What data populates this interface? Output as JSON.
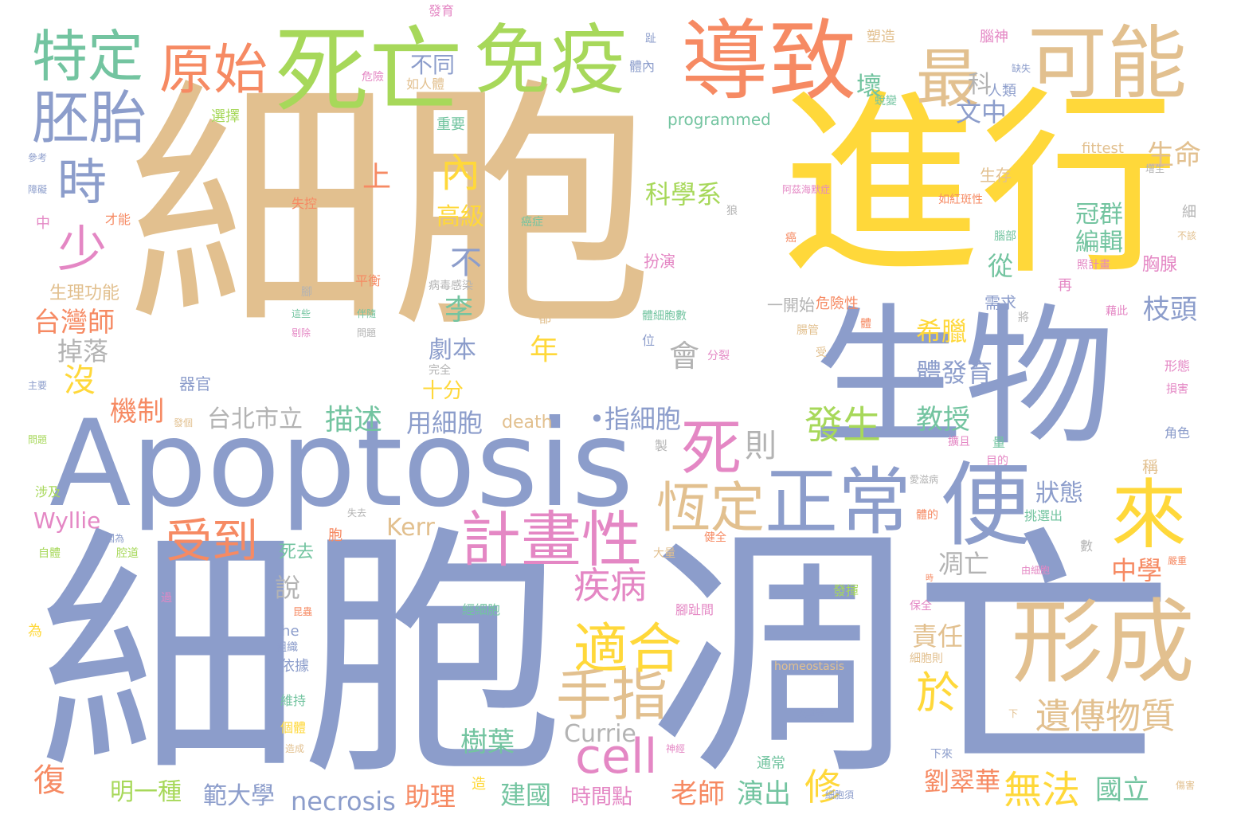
{
  "colors": {
    "tan": "#e2c08f",
    "blue": "#8c9dcb",
    "green": "#a7d85a",
    "orange": "#f68a63",
    "yellow": "#ffd83a",
    "pink": "#e487c4",
    "teal": "#73c4a0",
    "gray": "#b3b3b3"
  },
  "words": [
    {
      "text": "細胞"
    },
    {
      "text": "細胞"
    },
    {
      "text": "凋亡"
    },
    {
      "text": "進行"
    },
    {
      "text": "生物"
    },
    {
      "text": "Apoptosis"
    },
    {
      "text": "導致"
    },
    {
      "text": "死亡"
    },
    {
      "text": "免疫"
    },
    {
      "text": "可能"
    },
    {
      "text": "形成"
    },
    {
      "text": "特定"
    },
    {
      "text": "原始"
    },
    {
      "text": "胚胎"
    },
    {
      "text": "最"
    },
    {
      "text": "正常"
    },
    {
      "text": "便"
    },
    {
      "text": "來"
    },
    {
      "text": "計畫性"
    },
    {
      "text": "死"
    },
    {
      "text": "恆定"
    },
    {
      "text": "手指"
    },
    {
      "text": "適合"
    },
    {
      "text": "cell"
    },
    {
      "text": "時"
    },
    {
      "text": "少"
    },
    {
      "text": "受到"
    },
    {
      "text": "內"
    },
    {
      "text": "疾病"
    },
    {
      "text": "於"
    },
    {
      "text": "遺傳物質"
    },
    {
      "text": "台灣師"
    },
    {
      "text": "掉落"
    },
    {
      "text": "沒"
    },
    {
      "text": "機制"
    },
    {
      "text": "台北市立"
    },
    {
      "text": "描述"
    },
    {
      "text": "用細胞"
    },
    {
      "text": "•指細胞"
    },
    {
      "text": "科學系"
    },
    {
      "text": "冠群"
    },
    {
      "text": "編輯"
    },
    {
      "text": "從"
    },
    {
      "text": "狀態"
    },
    {
      "text": "希臘"
    },
    {
      "text": "體發育"
    },
    {
      "text": "枝頭"
    },
    {
      "text": "教授"
    },
    {
      "text": "發生"
    },
    {
      "text": "修"
    },
    {
      "text": "無法"
    },
    {
      "text": "劉翠華"
    },
    {
      "text": "國立"
    },
    {
      "text": "老師"
    },
    {
      "text": "演出"
    },
    {
      "text": "建國"
    },
    {
      "text": "時間點"
    },
    {
      "text": "助理"
    },
    {
      "text": "necrosis"
    },
    {
      "text": "範大學"
    },
    {
      "text": "明一種"
    },
    {
      "text": "復"
    },
    {
      "text": "Wyllie"
    },
    {
      "text": "Kerr"
    },
    {
      "text": "Currie"
    },
    {
      "text": "樹葉"
    },
    {
      "text": "會"
    },
    {
      "text": "則"
    },
    {
      "text": "高級"
    },
    {
      "text": "不"
    },
    {
      "text": "李"
    },
    {
      "text": "劇本"
    },
    {
      "text": "年"
    },
    {
      "text": "上"
    },
    {
      "text": "不同"
    },
    {
      "text": "壞"
    },
    {
      "text": "科"
    },
    {
      "text": "文中"
    },
    {
      "text": "生命"
    },
    {
      "text": "中學"
    },
    {
      "text": "凋亡"
    },
    {
      "text": "說"
    },
    {
      "text": "責任"
    },
    {
      "text": "十分"
    },
    {
      "text": "death"
    },
    {
      "text": "programmed"
    },
    {
      "text": "fittest"
    },
    {
      "text": "homeostasis"
    },
    {
      "text": "the"
    },
    {
      "text": "生存"
    },
    {
      "text": "一開始"
    },
    {
      "text": "危險性"
    },
    {
      "text": "生理功能"
    },
    {
      "text": "器官"
    },
    {
      "text": "扮演"
    },
    {
      "text": "死去"
    },
    {
      "text": "重要"
    },
    {
      "text": "選擇"
    },
    {
      "text": "塑造"
    },
    {
      "text": "腦神"
    },
    {
      "text": "人類"
    },
    {
      "text": "如人體"
    },
    {
      "text": "危險"
    },
    {
      "text": "體內"
    },
    {
      "text": "發育"
    },
    {
      "text": "趾"
    },
    {
      "text": "缺失"
    },
    {
      "text": "蛻變"
    },
    {
      "text": "增生"
    },
    {
      "text": "如紅斑性"
    },
    {
      "text": "阿茲海默症"
    },
    {
      "text": "參考"
    },
    {
      "text": "障礙"
    },
    {
      "text": "才能"
    },
    {
      "text": "中"
    },
    {
      "text": "失控"
    },
    {
      "text": "癌症"
    },
    {
      "text": "腦部"
    },
    {
      "text": "狼"
    },
    {
      "text": "癌"
    },
    {
      "text": "細"
    },
    {
      "text": "不該"
    },
    {
      "text": "照計畫"
    },
    {
      "text": "胸腺"
    },
    {
      "text": "再"
    },
    {
      "text": "需求"
    },
    {
      "text": "藉此"
    },
    {
      "text": "將"
    },
    {
      "text": "平衡"
    },
    {
      "text": "病毒感染"
    },
    {
      "text": "腳"
    },
    {
      "text": "這些"
    },
    {
      "text": "剔除"
    },
    {
      "text": "伴隨"
    },
    {
      "text": "問題"
    },
    {
      "text": "都"
    },
    {
      "text": "體細胞數"
    },
    {
      "text": "位"
    },
    {
      "text": "分裂"
    },
    {
      "text": "腸管"
    },
    {
      "text": "受"
    },
    {
      "text": "體"
    },
    {
      "text": "主要"
    },
    {
      "text": "完全"
    },
    {
      "text": "形態"
    },
    {
      "text": "損害"
    },
    {
      "text": "角色"
    },
    {
      "text": "發個"
    },
    {
      "text": "問題"
    },
    {
      "text": "製"
    },
    {
      "text": "擴且"
    },
    {
      "text": "量"
    },
    {
      "text": "目的"
    },
    {
      "text": "稱"
    },
    {
      "text": "愛滋病"
    },
    {
      "text": "涉及"
    },
    {
      "text": "失去"
    },
    {
      "text": "體的"
    },
    {
      "text": "挑選出"
    },
    {
      "text": "胞"
    },
    {
      "text": "因為"
    },
    {
      "text": "自體"
    },
    {
      "text": "腔道"
    },
    {
      "text": "健全"
    },
    {
      "text": "大量"
    },
    {
      "text": "數"
    },
    {
      "text": "由細胞"
    },
    {
      "text": "嚴重"
    },
    {
      "text": "時"
    },
    {
      "text": "發揮"
    },
    {
      "text": "昆蟲"
    },
    {
      "text": "腳趾間"
    },
    {
      "text": "經細胞"
    },
    {
      "text": "過"
    },
    {
      "text": "保全"
    },
    {
      "text": "為"
    },
    {
      "text": "組織"
    },
    {
      "text": "細胞則"
    },
    {
      "text": "依據"
    },
    {
      "text": "維持"
    },
    {
      "text": "攻擊體"
    },
    {
      "text": "下"
    },
    {
      "text": "個體"
    },
    {
      "text": "造成"
    },
    {
      "text": "神經"
    },
    {
      "text": "通常"
    },
    {
      "text": "下來"
    },
    {
      "text": "細胞須"
    },
    {
      "text": "傷害"
    },
    {
      "text": "造"
    }
  ]
}
